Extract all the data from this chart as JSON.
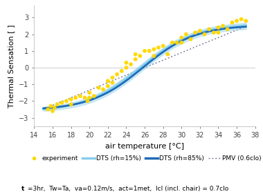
{
  "title": "",
  "xlabel": "air temperature [°C]",
  "ylabel": "Thermal Sensation [ ]",
  "xlim": [
    14,
    38
  ],
  "ylim": [
    -3.5,
    3.7
  ],
  "xticks": [
    14,
    16,
    18,
    20,
    22,
    24,
    26,
    28,
    30,
    32,
    34,
    36,
    38
  ],
  "yticks": [
    -3,
    -2,
    -1,
    0,
    1,
    2,
    3
  ],
  "bg_color": "#ffffff",
  "scatter_color": "#FFD700",
  "scatter_x": [
    15.5,
    15.8,
    16.0,
    16.2,
    16.5,
    17.0,
    17.5,
    18.0,
    18.0,
    18.5,
    19.0,
    19.5,
    19.8,
    20.0,
    20.0,
    20.5,
    21.0,
    21.5,
    22.0,
    22.0,
    22.5,
    22.5,
    23.0,
    23.5,
    24.0,
    24.0,
    24.5,
    25.0,
    25.0,
    25.5,
    26.0,
    26.5,
    27.0,
    27.0,
    27.5,
    28.0,
    28.5,
    29.0,
    29.5,
    30.0,
    30.0,
    30.5,
    31.0,
    31.5,
    32.0,
    32.5,
    33.0,
    33.5,
    34.0,
    34.0,
    34.5,
    35.0,
    35.5,
    36.0,
    36.5,
    37.0
  ],
  "scatter_y": [
    -2.5,
    -2.3,
    -2.6,
    -2.4,
    -2.2,
    -2.1,
    -2.0,
    -1.9,
    -2.2,
    -1.8,
    -1.7,
    -1.8,
    -2.0,
    -1.5,
    -1.8,
    -1.7,
    -1.2,
    -1.3,
    -0.8,
    -1.1,
    -0.9,
    -0.6,
    -0.4,
    -0.2,
    0.0,
    0.3,
    0.2,
    0.5,
    0.8,
    0.7,
    1.0,
    1.0,
    1.1,
    0.7,
    1.2,
    1.3,
    0.8,
    1.5,
    1.5,
    1.8,
    1.5,
    2.0,
    1.7,
    2.1,
    2.2,
    2.0,
    2.3,
    2.1,
    2.4,
    2.1,
    2.5,
    2.3,
    2.7,
    2.8,
    2.9,
    2.8
  ],
  "dts15_color": "#87CEEB",
  "dts85_color": "#1E6BB8",
  "pmv_color": "#777799",
  "curve_x_start": 15,
  "curve_x_end": 37,
  "legend_labels": [
    "experiment",
    "DTS (rh=15%)",
    "DTS (rh=85%)",
    "PMV (0.6clo)"
  ],
  "footnote": "t=3hr,  Tw=Ta,  va=0.12m/s,  act=1met,  Icl (incl. chair) = 0.7clo"
}
